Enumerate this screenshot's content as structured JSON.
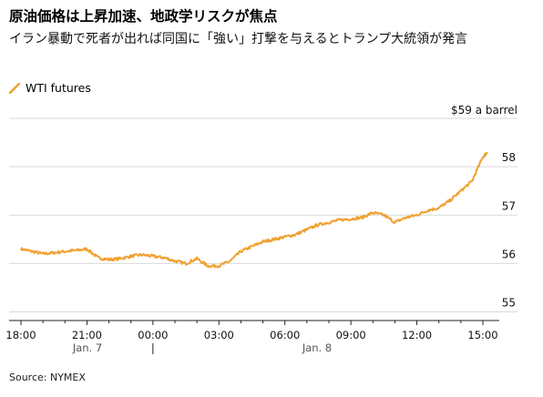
{
  "headline": "原油価格は上昇加速、地政学リスクが焦点",
  "subheadline": "イラン暴動で死者が出れば同国に「強い」打撃を与えるとトランプ大統領が発言",
  "source": "Source: NYMEX",
  "colors": {
    "line": "#f0a030",
    "grid": "#d9d9d9",
    "axis": "#222222"
  },
  "chart_data": {
    "type": "line",
    "title": "原油価格は上昇加速、地政学リスクが焦点",
    "subtitle": "イラン暴動で死者が出れば同国に「強い」打撃を与えるとトランプ大統領が発言",
    "legend": [
      "WTI futures"
    ],
    "legend_position": "top-left",
    "y_unit_label": "$59 a barrel",
    "ylim": [
      55,
      59
    ],
    "y_ticks": [
      55,
      56,
      57,
      58
    ],
    "y_tick_labels": [
      "55",
      "56",
      "57",
      "58"
    ],
    "x_tick_labels": [
      "18:00",
      "21:00",
      "00:00",
      "03:00",
      "06:00",
      "09:00",
      "12:00",
      "15:00"
    ],
    "x_tick_hours": [
      18,
      21,
      24,
      27,
      30,
      33,
      36,
      39
    ],
    "date_labels": [
      "Jan. 7",
      "Jan. 8"
    ],
    "xlim_hours": [
      18,
      39.2
    ],
    "grid": true,
    "series": [
      {
        "name": "WTI futures",
        "x_hours": [
          18,
          18.5,
          19,
          19.5,
          20,
          20.5,
          21,
          21.5,
          22,
          22.5,
          23,
          23.5,
          24,
          24.5,
          25,
          25.5,
          26,
          26.5,
          27,
          27.5,
          28,
          28.5,
          29,
          29.5,
          30,
          30.5,
          31,
          31.5,
          32,
          32.5,
          33,
          33.5,
          34,
          34.5,
          35,
          35.5,
          36,
          36.5,
          37,
          37.5,
          38,
          38.5,
          39,
          39.2
        ],
        "values": [
          56.3,
          56.25,
          56.2,
          56.22,
          56.25,
          56.27,
          56.3,
          56.12,
          56.08,
          56.1,
          56.15,
          56.18,
          56.15,
          56.12,
          56.05,
          56.0,
          56.1,
          55.95,
          55.95,
          56.05,
          56.25,
          56.35,
          56.45,
          56.5,
          56.55,
          56.6,
          56.7,
          56.8,
          56.85,
          56.9,
          56.92,
          56.95,
          57.05,
          57.0,
          56.85,
          56.95,
          57.0,
          57.1,
          57.15,
          57.3,
          57.5,
          57.7,
          58.2,
          58.3
        ]
      }
    ]
  }
}
